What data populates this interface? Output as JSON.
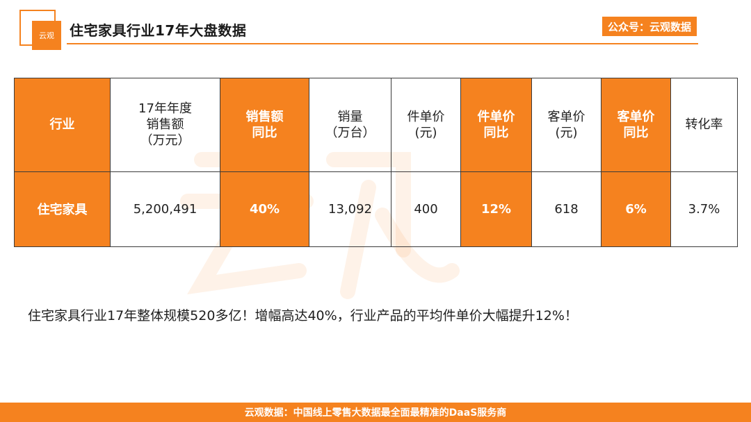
{
  "header": {
    "logo_text": "云观",
    "title": "住宅家具行业17年大盘数据",
    "source_badge": "公众号：云观数据"
  },
  "table": {
    "headers": [
      {
        "lines": [
          "行业"
        ],
        "highlight": true
      },
      {
        "lines": [
          "17年年度",
          "销售额",
          "（万元）"
        ],
        "highlight": false
      },
      {
        "lines": [
          "销售额",
          "同比"
        ],
        "highlight": true
      },
      {
        "lines": [
          "销量",
          "（万台）"
        ],
        "highlight": false
      },
      {
        "lines": [
          "件单价",
          "(元)"
        ],
        "highlight": false
      },
      {
        "lines": [
          "件单价",
          "同比"
        ],
        "highlight": true
      },
      {
        "lines": [
          "客单价",
          "(元)"
        ],
        "highlight": false
      },
      {
        "lines": [
          "客单价",
          "同比"
        ],
        "highlight": true
      },
      {
        "lines": [
          "转化率"
        ],
        "highlight": false
      }
    ],
    "rows": [
      [
        "住宅家具",
        "5,200,491",
        "40%",
        "13,092",
        "400",
        "12%",
        "618",
        "6%",
        "3.7%"
      ]
    ]
  },
  "summary": "住宅家具行业17年整体规模520多亿！增幅高达40%，行业产品的平均件单价大幅提升12%！",
  "footer": "云观数据：中国线上零售大数据最全面最精准的DaaS服务商",
  "colors": {
    "accent": "#f5821f",
    "text": "#222222",
    "border": "#3a3a3a"
  }
}
